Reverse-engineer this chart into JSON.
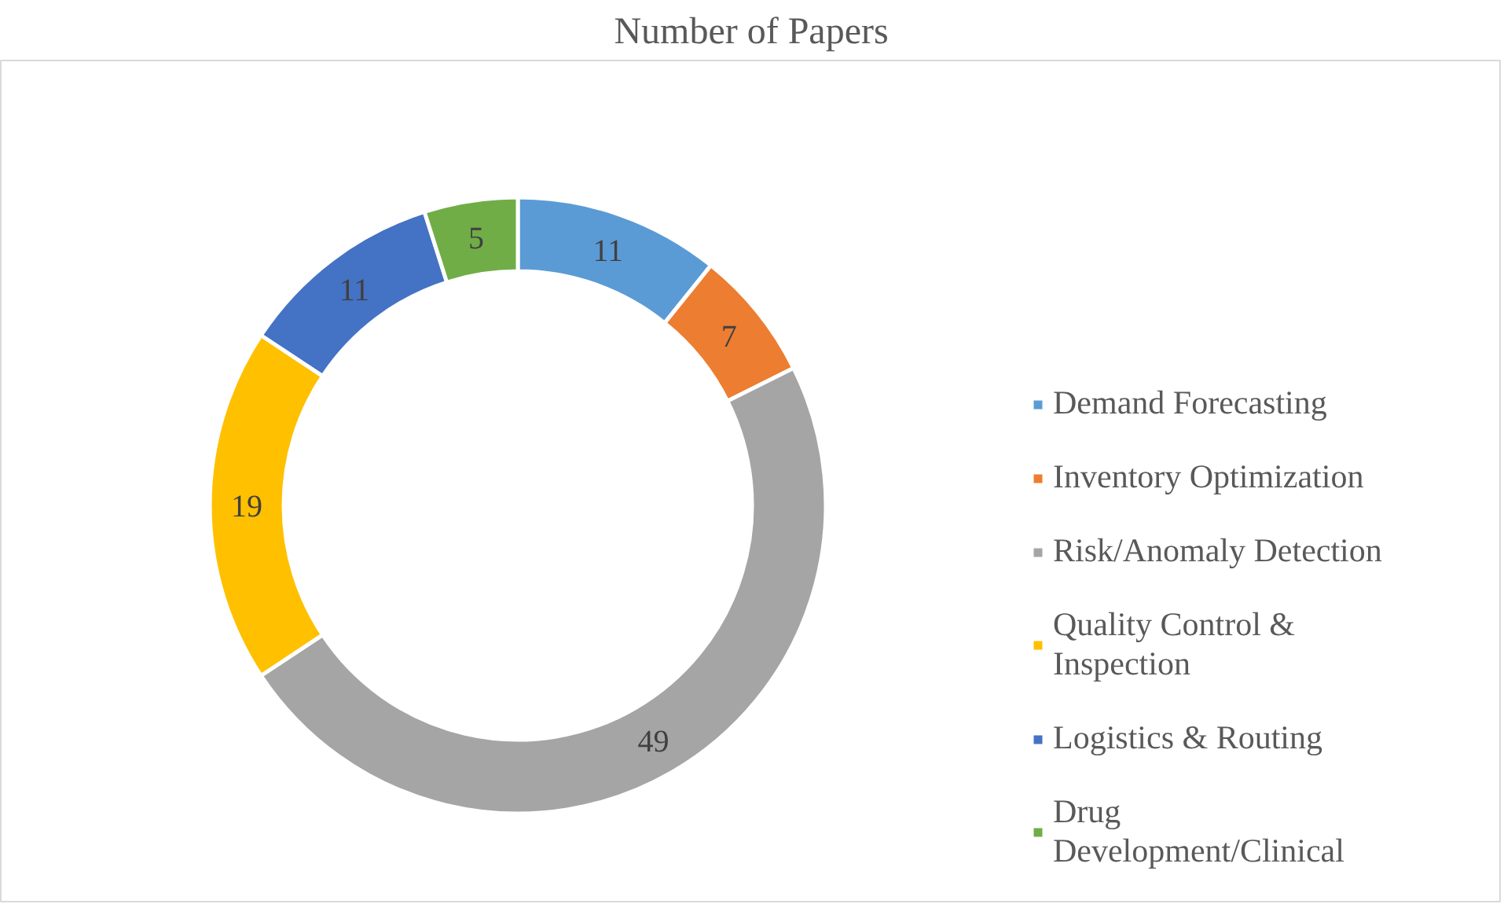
{
  "chart_data": {
    "type": "donut",
    "title": "Number of Papers",
    "categories": [
      "Demand Forecasting",
      "Inventory Optimization",
      "Risk/Anomaly Detection",
      "Quality Control & Inspection",
      "Logistics & Routing",
      "Drug Development/Clinical"
    ],
    "values": [
      11,
      7,
      49,
      19,
      11,
      5
    ],
    "colors": [
      "#5b9bd5",
      "#ed7d31",
      "#a5a5a5",
      "#ffc000",
      "#4472c4",
      "#70ad47"
    ],
    "data_labels": true,
    "legend": "right"
  }
}
